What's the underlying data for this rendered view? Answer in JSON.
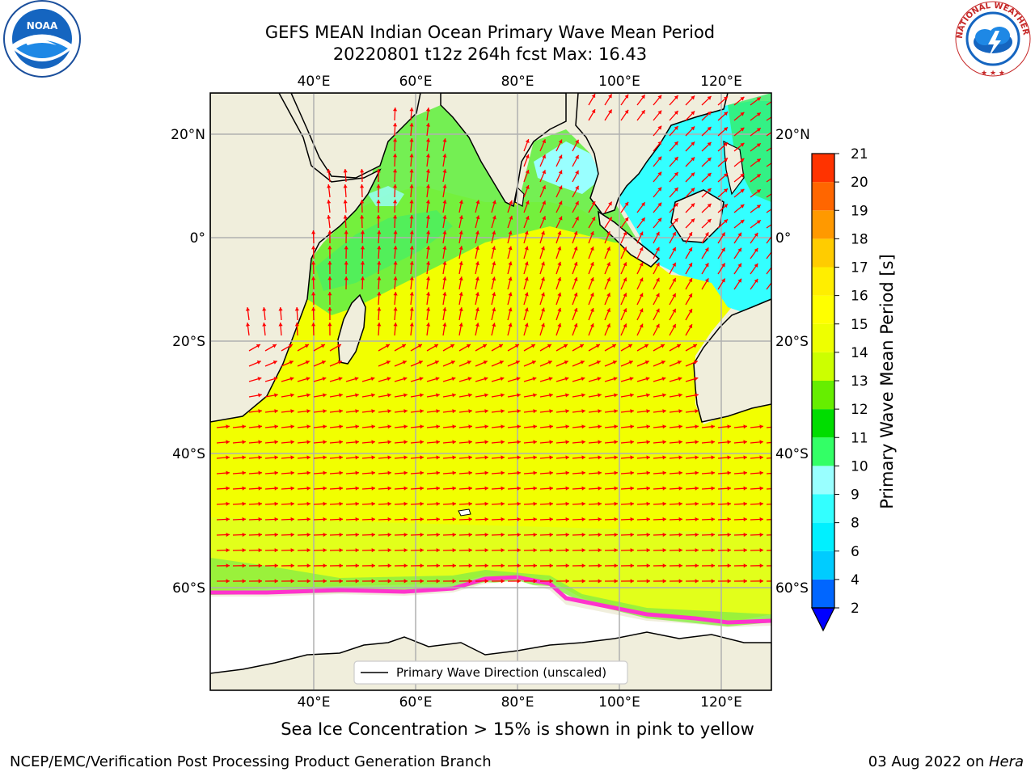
{
  "title_line1": "GEFS MEAN Indian Ocean Primary Wave Mean Period",
  "title_line2": "20220801 t12z 264h fcst   Max: 16.43",
  "caption": "Sea Ice Concentration > 15% is shown in pink to yellow",
  "footer_left": "NCEP/EMC/Verification Post Processing Product Generation Branch",
  "footer_right_date": "03 Aug 2022 on ",
  "footer_right_machine": "Hera",
  "legend_label": "Primary Wave Direction (unscaled)",
  "colorbar_label": "Primary Wave Mean Period [s]",
  "colorbar_ticks": [
    "2",
    "4",
    "6",
    "8",
    "9",
    "10",
    "11",
    "12",
    "13",
    "14",
    "15",
    "16",
    "17",
    "18",
    "19",
    "20",
    "21"
  ],
  "colorbar_colors": [
    "#0066ff",
    "#00ccff",
    "#00f0ff",
    "#33ffff",
    "#99ffff",
    "#33ff66",
    "#00dd00",
    "#66ee00",
    "#ccff00",
    "#eeff00",
    "#ffff00",
    "#ffee00",
    "#ffcc00",
    "#ff9900",
    "#ff6600",
    "#ff3300"
  ],
  "lon_labels": [
    "40°E",
    "60°E",
    "80°E",
    "100°E",
    "120°E"
  ],
  "lat_labels": [
    "20°N",
    "0°",
    "20°S",
    "40°S",
    "60°S"
  ],
  "logos": {
    "left": "NOAA",
    "right": "NATIONAL WEATHER SERVICE"
  },
  "colors": {
    "land": "#f0eedc",
    "arrow": "#ff0000",
    "ocean_main": "#f2ff00",
    "grid": "#b0b0b0"
  }
}
